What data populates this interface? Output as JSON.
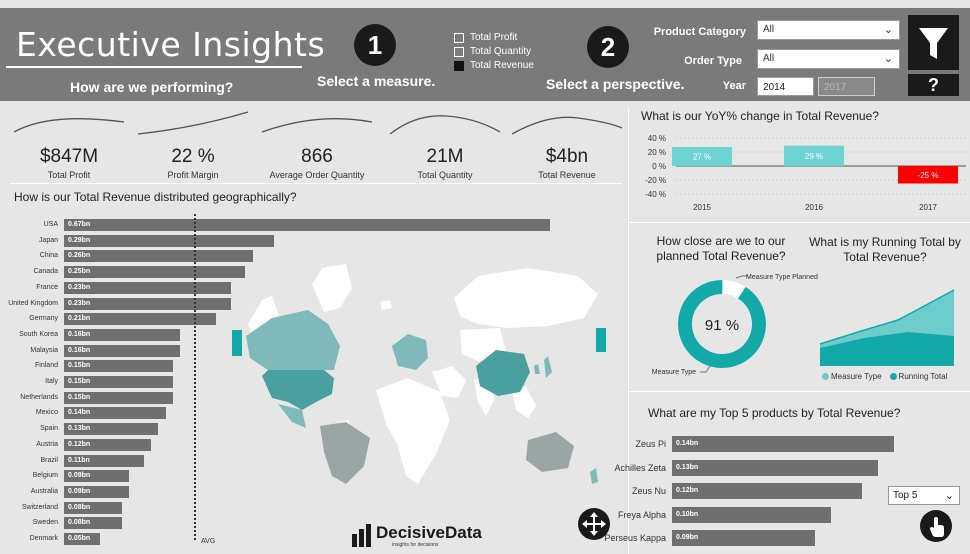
{
  "header": {
    "title": "Executive Insights",
    "subtitle": "How are we performing?",
    "step1": "1",
    "step1_label": "Select a measure.",
    "step2": "2",
    "step2_label": "Select a perspective.",
    "measures": [
      {
        "label": "Total Profit",
        "checked": false
      },
      {
        "label": "Total Quantity",
        "checked": false
      },
      {
        "label": "Total Revenue",
        "checked": true
      }
    ],
    "filters": {
      "product_category_label": "Product Category",
      "product_category_value": "All",
      "order_type_label": "Order Type",
      "order_type_value": "All",
      "year_label": "Year",
      "year_from": "2014",
      "year_to": "2017"
    },
    "help": "?"
  },
  "kpis": [
    {
      "value": "$847M",
      "label": "Total Profit"
    },
    {
      "value": "22 %",
      "label": "Profit Margin"
    },
    {
      "value": "866",
      "label": "Average Order Quantity"
    },
    {
      "value": "21M",
      "label": "Total Quantity"
    },
    {
      "value": "$4bn",
      "label": "Total Revenue"
    }
  ],
  "geo": {
    "title": "How is our Total Revenue distributed geographically?",
    "avg_label": "AVG",
    "rows": [
      {
        "country": "USA",
        "label": "0.67bn",
        "value": 0.67
      },
      {
        "country": "Japan",
        "label": "0.29bn",
        "value": 0.29
      },
      {
        "country": "China",
        "label": "0.26bn",
        "value": 0.26
      },
      {
        "country": "Canada",
        "label": "0.25bn",
        "value": 0.25
      },
      {
        "country": "France",
        "label": "0.23bn",
        "value": 0.23
      },
      {
        "country": "United Kingdom",
        "label": "0.23bn",
        "value": 0.23
      },
      {
        "country": "Germany",
        "label": "0.21bn",
        "value": 0.21
      },
      {
        "country": "South Korea",
        "label": "0.16bn",
        "value": 0.16
      },
      {
        "country": "Malaysia",
        "label": "0.16bn",
        "value": 0.16
      },
      {
        "country": "Finland",
        "label": "0.15bn",
        "value": 0.15
      },
      {
        "country": "Italy",
        "label": "0.15bn",
        "value": 0.15
      },
      {
        "country": "Netherlands",
        "label": "0.15bn",
        "value": 0.15
      },
      {
        "country": "Mexico",
        "label": "0.14bn",
        "value": 0.14
      },
      {
        "country": "Spain",
        "label": "0.13bn",
        "value": 0.13
      },
      {
        "country": "Austria",
        "label": "0.12bn",
        "value": 0.12
      },
      {
        "country": "Brazil",
        "label": "0.11bn",
        "value": 0.11
      },
      {
        "country": "Belgium",
        "label": "0.09bn",
        "value": 0.09
      },
      {
        "country": "Australia",
        "label": "0.09bn",
        "value": 0.09
      },
      {
        "country": "Switzerland",
        "label": "0.08bn",
        "value": 0.08
      },
      {
        "country": "Sweden",
        "label": "0.08bn",
        "value": 0.08
      },
      {
        "country": "Denmark",
        "label": "0.05bn",
        "value": 0.05
      }
    ]
  },
  "brand": {
    "name": "DecisiveData",
    "tagline": "insights for decisions"
  },
  "yoy": {
    "title": "What is our YoY% change in Total Revenue?",
    "ticks": [
      "40 %",
      "20 %",
      "0 %",
      "-20 %",
      "-40 %"
    ],
    "years": [
      "2015",
      "2016",
      "2017"
    ],
    "labels": [
      "27 %",
      "29 %",
      "-25 %"
    ],
    "values": [
      27,
      29,
      -25
    ],
    "colors": {
      "positive": "#6dd3d3",
      "negative": "#ff0000"
    }
  },
  "planned": {
    "title": "How close are we to our planned Total Revenue?",
    "center": "91 %",
    "value": 91,
    "label_planned": "Measure Type Planned",
    "label_actual": "Measure Type",
    "color": "#13a9a9"
  },
  "running": {
    "title": "What is my Running Total by Total Revenue?",
    "legend": [
      "Measure Type",
      "Running Total"
    ],
    "colors": [
      "#6fcccc",
      "#13a9a9"
    ]
  },
  "top5": {
    "title": "What are my Top 5 products by Total Revenue?",
    "dropdown": "Top 5",
    "rows": [
      {
        "name": "Zeus Pi",
        "label": "0.14bn",
        "value": 0.14
      },
      {
        "name": "Achilles Zeta",
        "label": "0.13bn",
        "value": 0.13
      },
      {
        "name": "Zeus Nu",
        "label": "0.12bn",
        "value": 0.12
      },
      {
        "name": "Freya Alpha",
        "label": "0.10bn",
        "value": 0.1
      },
      {
        "name": "Perseus Kappa",
        "label": "0.09bn",
        "value": 0.09
      }
    ]
  }
}
